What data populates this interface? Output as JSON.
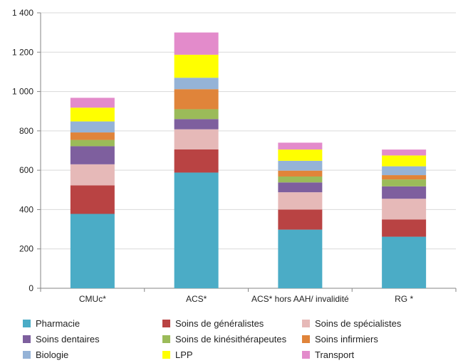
{
  "chart_data": {
    "type": "bar",
    "stacked": true,
    "categories": [
      "CMUc*",
      "ACS*",
      "ACS* hors AAH/ invalidité",
      "RG *"
    ],
    "ylim": [
      0,
      1400
    ],
    "yticks": [
      0,
      200,
      400,
      600,
      800,
      1000,
      1200,
      1400
    ],
    "ytick_labels": [
      "0",
      "200",
      "400",
      "600",
      "800",
      "1 000",
      "1 200",
      "1 400"
    ],
    "grid": true,
    "legend_position": "bottom",
    "series": [
      {
        "name": "Pharmacie",
        "color": "#4BACC6",
        "values": [
          378,
          588,
          298,
          262
        ]
      },
      {
        "name": "Soins de généralistes",
        "color": "#B94343",
        "values": [
          145,
          118,
          102,
          88
        ]
      },
      {
        "name": "Soins de spécialistes",
        "color": "#E6B9B8",
        "values": [
          107,
          102,
          88,
          105
        ]
      },
      {
        "name": "Soins dentaires",
        "color": "#7E5F9E",
        "values": [
          92,
          52,
          50,
          63
        ]
      },
      {
        "name": "Soins de kinésithérapeutes",
        "color": "#9BBB59",
        "values": [
          32,
          50,
          30,
          35
        ]
      },
      {
        "name": "Soins infirmiers",
        "color": "#E0843A",
        "values": [
          38,
          102,
          30,
          22
        ]
      },
      {
        "name": "Biologie",
        "color": "#95B3D7",
        "values": [
          56,
          58,
          50,
          45
        ]
      },
      {
        "name": "LPP",
        "color": "#FFFF00",
        "values": [
          70,
          117,
          57,
          55
        ]
      },
      {
        "name": "Transport",
        "color": "#E38BCB",
        "values": [
          50,
          113,
          35,
          30
        ]
      }
    ]
  }
}
